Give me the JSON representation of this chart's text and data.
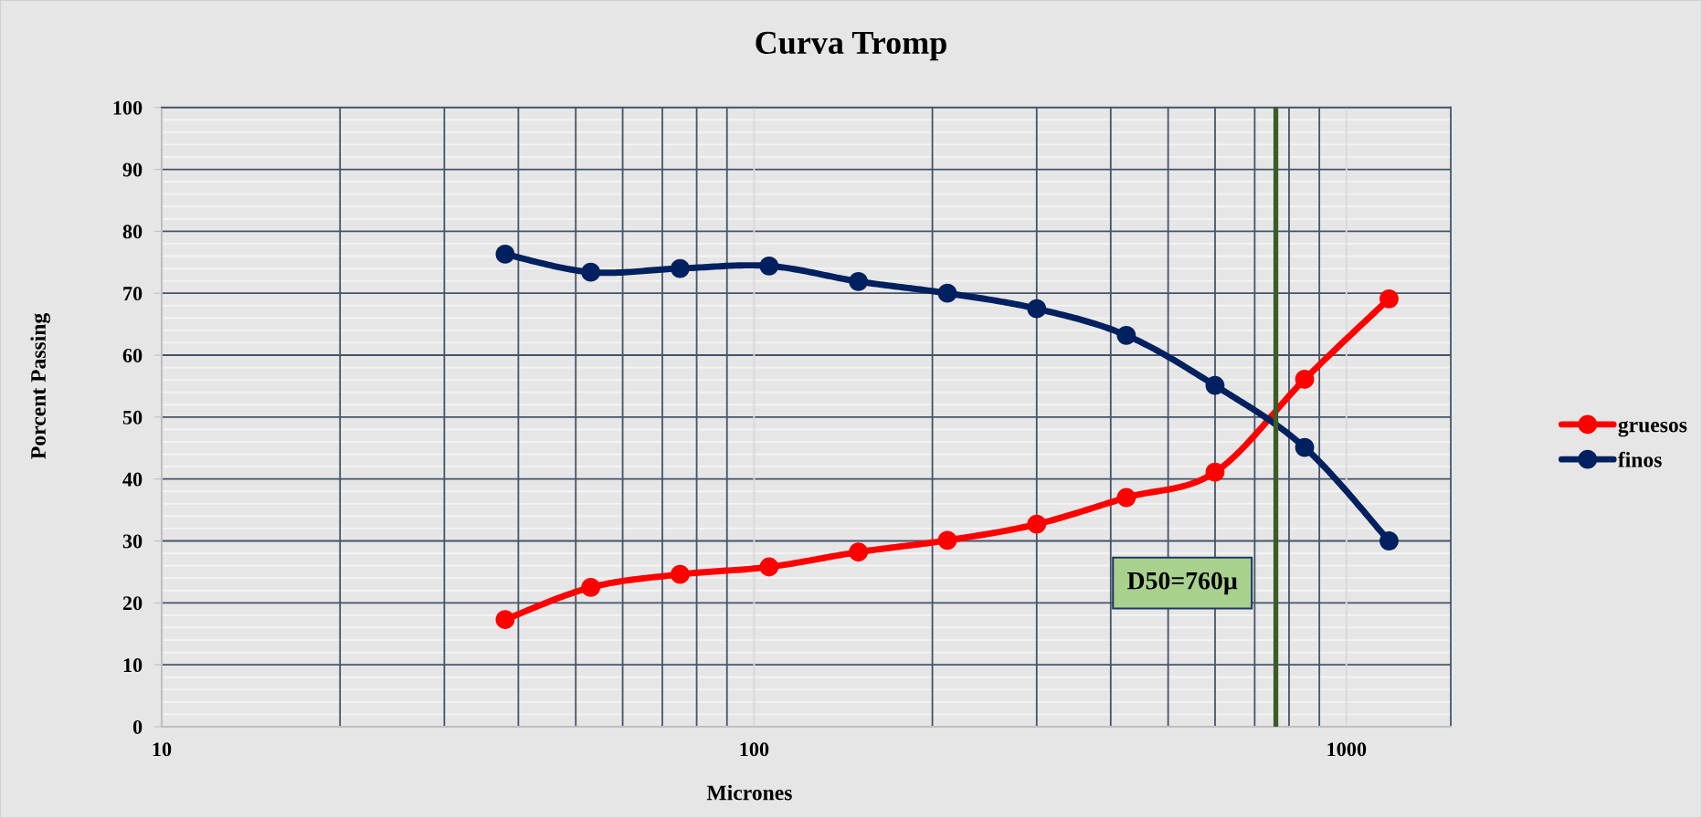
{
  "chart_data": {
    "type": "line",
    "title": "Curva Tromp",
    "xlabel": "Micrones",
    "ylabel": "Porcent Passing",
    "log": "x",
    "xlim": [
      10,
      1500
    ],
    "xticks": [
      10,
      100,
      1000
    ],
    "ylim": [
      0,
      100
    ],
    "yticks": [
      0,
      10,
      20,
      30,
      40,
      50,
      60,
      70,
      80,
      90,
      100
    ],
    "grid": true,
    "legend": "right",
    "marker": "circle",
    "line_style": "solid",
    "x": [
      38,
      53,
      75,
      106,
      150,
      212,
      300,
      425,
      600,
      850,
      1180
    ],
    "series": [
      {
        "name": "gruesos",
        "color": "#ff0000",
        "values": [
          17.3,
          22.5,
          24.6,
          25.8,
          28.2,
          30.1,
          32.7,
          37.0,
          41.1,
          56.1,
          69.1
        ]
      },
      {
        "name": "finos",
        "color": "#002060",
        "values": [
          76.3,
          73.4,
          74.0,
          74.4,
          71.9,
          70.0,
          67.5,
          63.2,
          55.1,
          45.1,
          30.0
        ]
      }
    ],
    "ref_lines": [
      {
        "axis": "x",
        "value": 760,
        "label": "D50=760µ",
        "color": "#3b5b27"
      }
    ]
  }
}
